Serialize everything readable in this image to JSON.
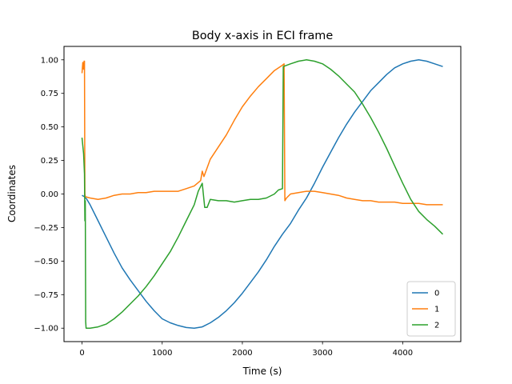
{
  "chart_data": {
    "type": "line",
    "title": "Body x-axis in ECI frame",
    "xlabel": "Time (s)",
    "ylabel": "Coordinates",
    "xlim": [
      -225,
      4725
    ],
    "ylim": [
      -1.1,
      1.1
    ],
    "xticks": [
      0,
      1000,
      2000,
      3000,
      4000
    ],
    "xtick_labels": [
      "0",
      "1000",
      "2000",
      "3000",
      "4000"
    ],
    "yticks": [
      -1.0,
      -0.75,
      -0.5,
      -0.25,
      0.0,
      0.25,
      0.5,
      0.75,
      1.0
    ],
    "ytick_labels": [
      "−1.00",
      "−0.75",
      "−0.50",
      "−0.25",
      "0.00",
      "0.25",
      "0.50",
      "0.75",
      "1.00"
    ],
    "grid": false,
    "legend_position": "lower-right",
    "series": [
      {
        "name": "0",
        "color": "#1f77b4",
        "points": [
          [
            0,
            -0.01
          ],
          [
            30,
            -0.02
          ],
          [
            60,
            -0.04
          ],
          [
            100,
            -0.08
          ],
          [
            200,
            -0.2
          ],
          [
            300,
            -0.32
          ],
          [
            400,
            -0.44
          ],
          [
            500,
            -0.55
          ],
          [
            600,
            -0.64
          ],
          [
            700,
            -0.72
          ],
          [
            800,
            -0.8
          ],
          [
            900,
            -0.87
          ],
          [
            1000,
            -0.93
          ],
          [
            1100,
            -0.96
          ],
          [
            1200,
            -0.98
          ],
          [
            1300,
            -0.995
          ],
          [
            1400,
            -1.0
          ],
          [
            1500,
            -0.99
          ],
          [
            1600,
            -0.96
          ],
          [
            1700,
            -0.92
          ],
          [
            1800,
            -0.87
          ],
          [
            1900,
            -0.81
          ],
          [
            2000,
            -0.74
          ],
          [
            2100,
            -0.66
          ],
          [
            2200,
            -0.58
          ],
          [
            2300,
            -0.49
          ],
          [
            2400,
            -0.39
          ],
          [
            2500,
            -0.3
          ],
          [
            2600,
            -0.22
          ],
          [
            2700,
            -0.12
          ],
          [
            2800,
            -0.03
          ],
          [
            2900,
            0.08
          ],
          [
            3000,
            0.2
          ],
          [
            3100,
            0.31
          ],
          [
            3200,
            0.42
          ],
          [
            3300,
            0.52
          ],
          [
            3400,
            0.61
          ],
          [
            3500,
            0.69
          ],
          [
            3600,
            0.77
          ],
          [
            3700,
            0.83
          ],
          [
            3800,
            0.89
          ],
          [
            3900,
            0.94
          ],
          [
            4000,
            0.97
          ],
          [
            4100,
            0.99
          ],
          [
            4200,
            1.0
          ],
          [
            4300,
            0.99
          ],
          [
            4400,
            0.97
          ],
          [
            4500,
            0.95
          ]
        ]
      },
      {
        "name": "1",
        "color": "#ff7f0e",
        "points": [
          [
            0,
            0.9
          ],
          [
            10,
            0.98
          ],
          [
            20,
            0.93
          ],
          [
            25,
            0.99
          ],
          [
            30,
            0.99
          ],
          [
            35,
            0.0
          ],
          [
            40,
            -0.02
          ],
          [
            100,
            -0.03
          ],
          [
            200,
            -0.04
          ],
          [
            300,
            -0.03
          ],
          [
            400,
            -0.01
          ],
          [
            500,
            0.0
          ],
          [
            600,
            0.0
          ],
          [
            700,
            0.01
          ],
          [
            800,
            0.01
          ],
          [
            900,
            0.02
          ],
          [
            1000,
            0.02
          ],
          [
            1100,
            0.02
          ],
          [
            1200,
            0.02
          ],
          [
            1300,
            0.04
          ],
          [
            1400,
            0.06
          ],
          [
            1480,
            0.1
          ],
          [
            1500,
            0.17
          ],
          [
            1520,
            0.13
          ],
          [
            1600,
            0.26
          ],
          [
            1700,
            0.35
          ],
          [
            1800,
            0.44
          ],
          [
            1900,
            0.55
          ],
          [
            2000,
            0.65
          ],
          [
            2100,
            0.73
          ],
          [
            2200,
            0.8
          ],
          [
            2300,
            0.86
          ],
          [
            2400,
            0.92
          ],
          [
            2500,
            0.96
          ],
          [
            2520,
            0.97
          ],
          [
            2530,
            -0.05
          ],
          [
            2550,
            -0.03
          ],
          [
            2600,
            0.0
          ],
          [
            2700,
            0.01
          ],
          [
            2800,
            0.02
          ],
          [
            2900,
            0.02
          ],
          [
            3000,
            0.01
          ],
          [
            3100,
            0.0
          ],
          [
            3200,
            -0.01
          ],
          [
            3300,
            -0.03
          ],
          [
            3400,
            -0.04
          ],
          [
            3500,
            -0.05
          ],
          [
            3600,
            -0.05
          ],
          [
            3700,
            -0.06
          ],
          [
            3800,
            -0.06
          ],
          [
            3900,
            -0.06
          ],
          [
            4000,
            -0.07
          ],
          [
            4100,
            -0.07
          ],
          [
            4200,
            -0.07
          ],
          [
            4300,
            -0.08
          ],
          [
            4400,
            -0.08
          ],
          [
            4500,
            -0.08
          ]
        ]
      },
      {
        "name": "2",
        "color": "#2ca02c",
        "points": [
          [
            0,
            0.42
          ],
          [
            20,
            0.3
          ],
          [
            30,
            0.15
          ],
          [
            35,
            -0.2
          ],
          [
            40,
            -0.05
          ],
          [
            45,
            -0.95
          ],
          [
            50,
            -1.0
          ],
          [
            100,
            -1.0
          ],
          [
            200,
            -0.99
          ],
          [
            300,
            -0.97
          ],
          [
            400,
            -0.93
          ],
          [
            500,
            -0.88
          ],
          [
            600,
            -0.82
          ],
          [
            700,
            -0.76
          ],
          [
            800,
            -0.69
          ],
          [
            900,
            -0.61
          ],
          [
            1000,
            -0.52
          ],
          [
            1100,
            -0.43
          ],
          [
            1200,
            -0.32
          ],
          [
            1300,
            -0.2
          ],
          [
            1400,
            -0.08
          ],
          [
            1450,
            0.02
          ],
          [
            1500,
            0.08
          ],
          [
            1530,
            -0.1
          ],
          [
            1560,
            -0.1
          ],
          [
            1600,
            -0.04
          ],
          [
            1700,
            -0.05
          ],
          [
            1800,
            -0.05
          ],
          [
            1900,
            -0.06
          ],
          [
            2000,
            -0.05
          ],
          [
            2100,
            -0.04
          ],
          [
            2200,
            -0.04
          ],
          [
            2300,
            -0.03
          ],
          [
            2400,
            0.0
          ],
          [
            2450,
            0.03
          ],
          [
            2500,
            0.04
          ],
          [
            2510,
            0.95
          ],
          [
            2600,
            0.97
          ],
          [
            2700,
            0.99
          ],
          [
            2800,
            1.0
          ],
          [
            2900,
            0.99
          ],
          [
            3000,
            0.97
          ],
          [
            3100,
            0.93
          ],
          [
            3200,
            0.88
          ],
          [
            3300,
            0.82
          ],
          [
            3400,
            0.76
          ],
          [
            3500,
            0.67
          ],
          [
            3600,
            0.57
          ],
          [
            3700,
            0.46
          ],
          [
            3800,
            0.34
          ],
          [
            3900,
            0.21
          ],
          [
            4000,
            0.08
          ],
          [
            4100,
            -0.04
          ],
          [
            4200,
            -0.13
          ],
          [
            4300,
            -0.19
          ],
          [
            4400,
            -0.24
          ],
          [
            4500,
            -0.3
          ]
        ]
      }
    ]
  }
}
